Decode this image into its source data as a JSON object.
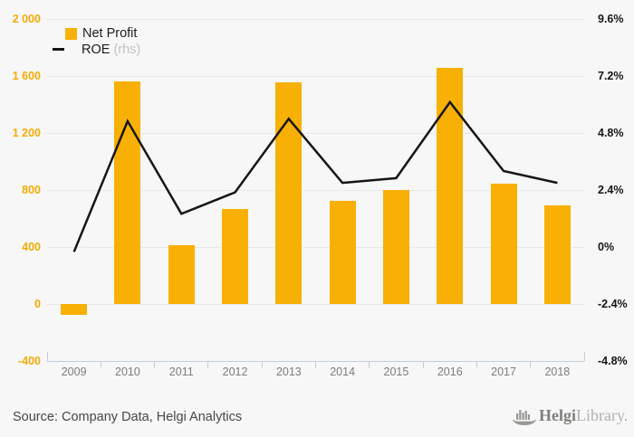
{
  "chart": {
    "legend": {
      "net_profit_label": "Net Profit",
      "roe_label": "ROE",
      "roe_suffix": " (rhs)"
    },
    "left_axis": {
      "ticks": [
        "2 000",
        "1 600",
        "1 200",
        "800",
        "400",
        "0",
        "-400"
      ]
    },
    "right_axis": {
      "ticks": [
        "9.6%",
        "7.2%",
        "4.8%",
        "2.4%",
        "0%",
        "-2.4%",
        "-4.8%"
      ]
    },
    "colors": {
      "bar": "#f9b005",
      "line": "#161616",
      "left_labels": "#f5ac05",
      "right_labels": "#161616",
      "x_labels": "#7d7d7d",
      "grid": "#e9e9e9",
      "axis": "#c3cddf",
      "background": "#f7f7f7"
    },
    "icons": {
      "logo": "helgi-ship-bar-chart-icon"
    }
  },
  "chart_data": {
    "type": "bar+line",
    "categories": [
      "2009",
      "2010",
      "2011",
      "2012",
      "2013",
      "2014",
      "2015",
      "2016",
      "2017",
      "2018"
    ],
    "series": [
      {
        "name": "Net Profit",
        "type": "bar",
        "axis": "left",
        "values": [
          -75,
          1560,
          410,
          665,
          1555,
          725,
          800,
          1660,
          845,
          690
        ]
      },
      {
        "name": "ROE",
        "type": "line",
        "axis": "right",
        "unit": "%",
        "values": [
          -0.2,
          5.3,
          1.4,
          2.3,
          5.4,
          2.7,
          2.9,
          6.1,
          3.2,
          2.7
        ]
      }
    ],
    "left_ylim": [
      -400,
      2000
    ],
    "right_ylim": [
      -4.8,
      9.6
    ],
    "left_tick_step": 400,
    "right_tick_step": 2.4,
    "grid": true,
    "legend_position": "top-left",
    "title": "",
    "xlabel": "",
    "ylabel": ""
  },
  "footer": {
    "source": "Source: Company Data, Helgi Analytics",
    "logo_helgi": "Helgi",
    "logo_library": "Library."
  }
}
